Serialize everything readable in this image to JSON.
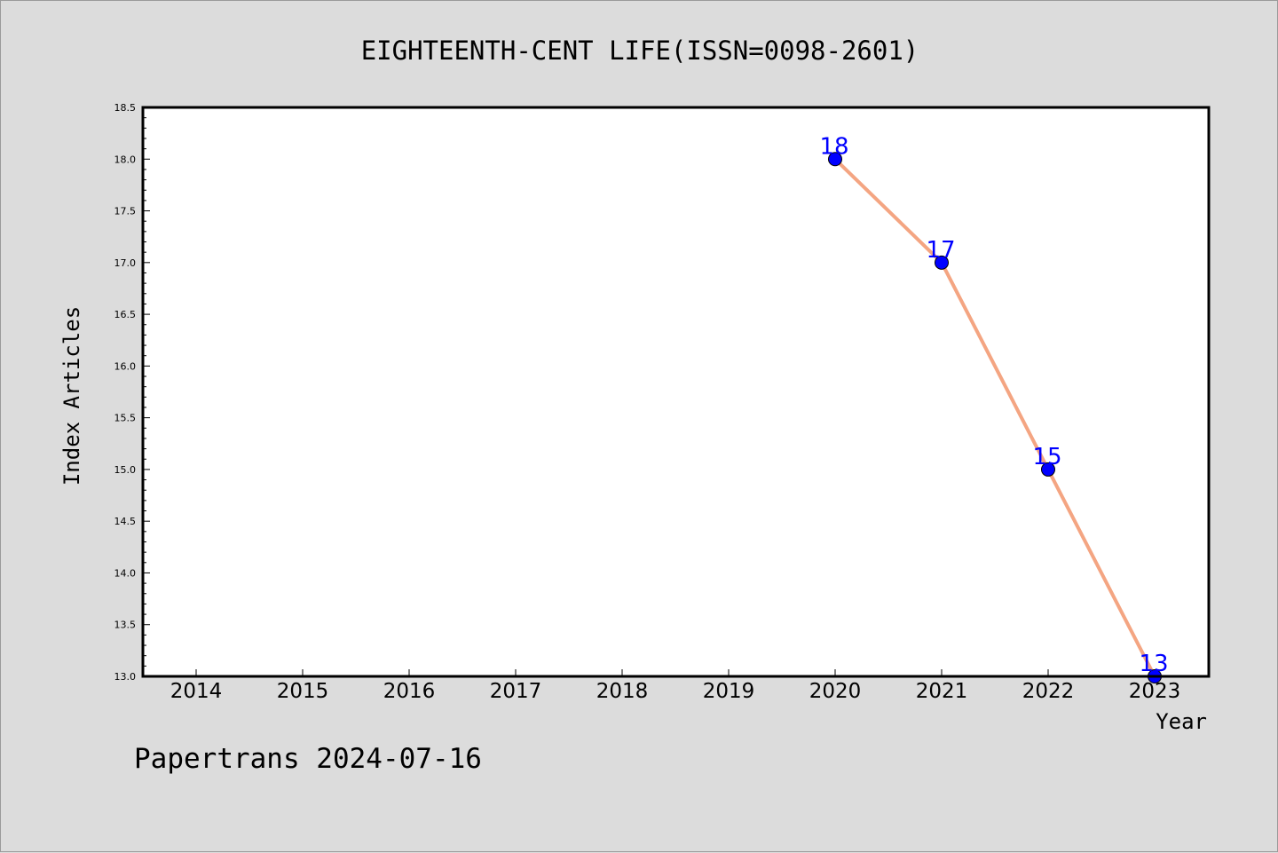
{
  "chart_data": {
    "type": "line",
    "title": "EIGHTEENTH-CENT LIFE(ISSN=0098-2601)",
    "xlabel": "Year",
    "ylabel": "Index Articles",
    "categories": [
      "2014",
      "2015",
      "2016",
      "2017",
      "2018",
      "2019",
      "2020",
      "2021",
      "2022",
      "2023"
    ],
    "ylim": [
      13.0,
      18.5
    ],
    "yticks": [
      "13.0",
      "13.5",
      "14.0",
      "14.5",
      "15.0",
      "15.5",
      "16.0",
      "16.5",
      "17.0",
      "17.5",
      "18.0",
      "18.5"
    ],
    "series": [
      {
        "x": [
          "2020",
          "2021",
          "2022",
          "2023"
        ],
        "values": [
          18,
          17,
          15,
          13
        ],
        "labels": [
          "18",
          "17",
          "15",
          "13"
        ],
        "line_color": "#f4a582",
        "marker_color": "#0000ff",
        "label_color": "#0000ff"
      }
    ],
    "grid": false,
    "legend": "none",
    "background": "#dcdcdc",
    "plot_background": "#ffffff"
  },
  "footer": {
    "text": "Papertrans 2024-07-16"
  }
}
